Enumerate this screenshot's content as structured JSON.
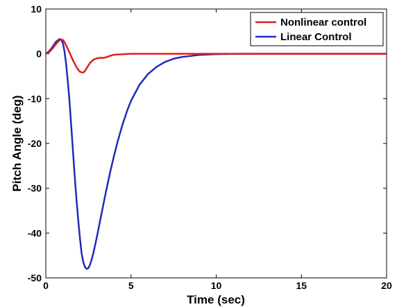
{
  "chart_data": {
    "type": "line",
    "xlabel": "Time (sec)",
    "ylabel": "Pitch Angle (deg)",
    "xlim": [
      0,
      20
    ],
    "ylim": [
      -50,
      10
    ],
    "xticks": [
      0,
      5,
      10,
      15,
      20
    ],
    "yticks": [
      10,
      0,
      -10,
      -20,
      -30,
      -40,
      -50
    ],
    "grid": false,
    "legend_position": "top-right",
    "series": [
      {
        "name": "Nonlinear control",
        "color": "#e31a1c",
        "x": [
          0,
          0.2,
          0.4,
          0.6,
          0.8,
          0.9,
          1.0,
          1.1,
          1.2,
          1.4,
          1.6,
          1.8,
          2.0,
          2.2,
          2.3,
          2.4,
          2.6,
          2.8,
          3.0,
          3.2,
          3.4,
          3.6,
          3.8,
          4.0,
          4.5,
          5.0,
          6.0,
          7.0,
          8.0,
          10.0,
          12.0,
          15.0,
          20.0
        ],
        "y": [
          0,
          0.4,
          1.2,
          2.2,
          3.0,
          3.2,
          3.1,
          2.6,
          1.8,
          0.2,
          -1.5,
          -3.0,
          -4.0,
          -4.2,
          -3.8,
          -3.2,
          -2.0,
          -1.3,
          -1.0,
          -0.9,
          -0.9,
          -0.7,
          -0.4,
          -0.2,
          -0.1,
          0.0,
          0.0,
          0.0,
          0.0,
          0.0,
          0.0,
          0.0,
          0.0
        ]
      },
      {
        "name": "Linear Control",
        "color": "#1f2bb8",
        "x": [
          0,
          0.2,
          0.4,
          0.6,
          0.8,
          0.9,
          1.0,
          1.1,
          1.2,
          1.3,
          1.4,
          1.5,
          1.6,
          1.7,
          1.8,
          1.9,
          2.0,
          2.1,
          2.2,
          2.3,
          2.4,
          2.5,
          2.6,
          2.7,
          2.8,
          2.9,
          3.0,
          3.2,
          3.4,
          3.6,
          3.8,
          4.0,
          4.2,
          4.5,
          4.8,
          5.0,
          5.5,
          6.0,
          6.5,
          7.0,
          7.5,
          8.0,
          9.0,
          10.0,
          11.0,
          12.0,
          15.0,
          20.0
        ],
        "y": [
          0,
          0.6,
          1.6,
          2.7,
          3.3,
          3.2,
          2.4,
          0.5,
          -2.5,
          -6.5,
          -11.0,
          -16.5,
          -22.0,
          -27.5,
          -32.5,
          -37.0,
          -41.0,
          -44.5,
          -46.5,
          -47.6,
          -48.0,
          -47.8,
          -47.0,
          -45.8,
          -44.3,
          -42.6,
          -40.8,
          -37.0,
          -33.2,
          -29.5,
          -26.0,
          -22.8,
          -19.8,
          -15.8,
          -12.4,
          -10.5,
          -6.9,
          -4.5,
          -2.9,
          -1.8,
          -1.1,
          -0.7,
          -0.25,
          -0.08,
          -0.02,
          0.0,
          0.0,
          0.0
        ]
      }
    ]
  }
}
